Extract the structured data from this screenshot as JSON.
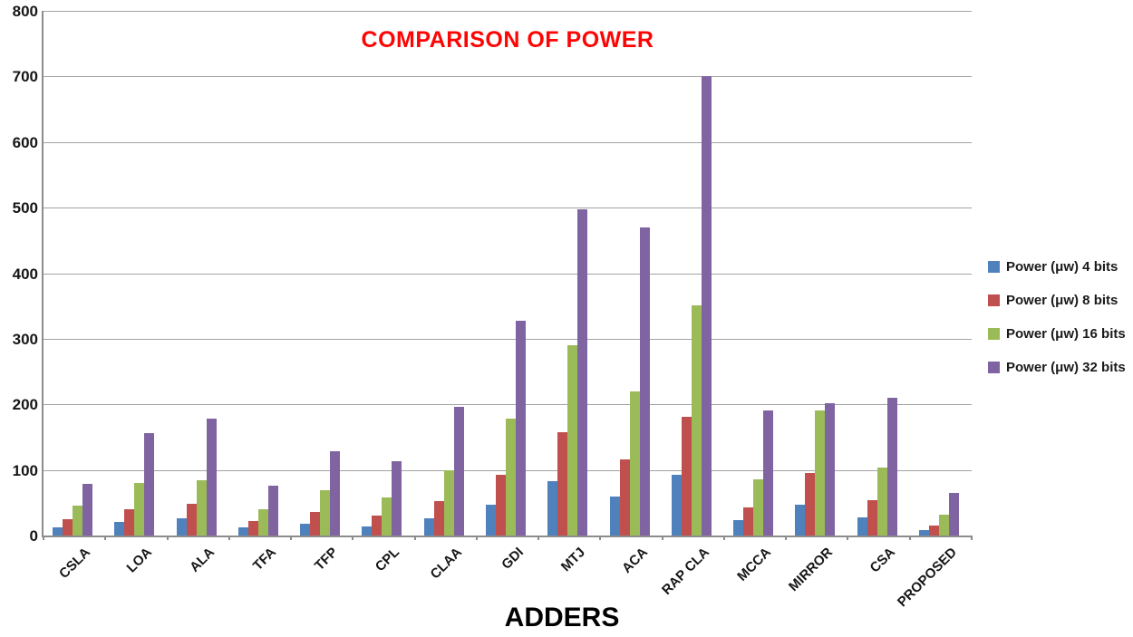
{
  "chart_data": {
    "type": "bar",
    "title": "COMPARISON OF POWER",
    "xlabel": "ADDERS",
    "ylabel": "",
    "ylim": [
      0,
      800
    ],
    "ytick_step": 100,
    "grid": true,
    "legend_position": "right",
    "categories": [
      "CSLA",
      "LOA",
      "ALA",
      "TFA",
      "TFP",
      "CPL",
      "CLAA",
      "GDI",
      "MTJ",
      "ACA",
      "RAP CLA",
      "MCCA",
      "MIRROR",
      "CSA",
      "PROPOSED"
    ],
    "series": [
      {
        "name": "Power (μw) 4 bits",
        "color": "#4F81BD",
        "values": [
          13,
          21,
          26,
          12,
          18,
          14,
          26,
          47,
          83,
          60,
          92,
          24,
          47,
          27,
          8
        ]
      },
      {
        "name": "Power (μw) 8 bits",
        "color": "#C0504D",
        "values": [
          25,
          40,
          49,
          22,
          36,
          30,
          53,
          93,
          158,
          116,
          181,
          43,
          96,
          54,
          15
        ]
      },
      {
        "name": "Power (μw) 16 bits",
        "color": "#9BBB59",
        "values": [
          45,
          80,
          84,
          40,
          69,
          58,
          100,
          178,
          290,
          220,
          351,
          85,
          191,
          103,
          32
        ]
      },
      {
        "name": "Power (μw) 32 bits",
        "color": "#8064A2",
        "values": [
          79,
          156,
          178,
          76,
          128,
          113,
          196,
          328,
          497,
          470,
          700,
          190,
          202,
          210,
          65
        ]
      }
    ],
    "colors": {
      "title": "#FE0505",
      "gridline": "#A3A3A3",
      "axis": "#8C8C8C",
      "text": "#161616"
    }
  }
}
